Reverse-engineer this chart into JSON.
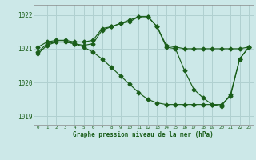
{
  "line1_x": [
    0,
    1,
    2,
    3,
    4,
    5,
    6,
    7,
    8,
    9,
    10,
    11,
    12,
    13,
    14,
    15,
    16,
    17,
    18,
    19,
    20,
    21,
    22,
    23
  ],
  "line1_y": [
    1021.05,
    1021.2,
    1021.25,
    1021.25,
    1021.2,
    1021.2,
    1021.25,
    1021.6,
    1021.65,
    1021.75,
    1021.85,
    1021.95,
    1021.95,
    1021.65,
    1021.1,
    1021.05,
    1021.0,
    1021.0,
    1021.0,
    1021.0,
    1021.0,
    1021.0,
    1021.0,
    1021.05
  ],
  "line2_x": [
    0,
    1,
    2,
    3,
    4,
    5,
    6,
    7,
    8,
    9,
    10,
    11,
    12,
    13,
    14,
    15,
    16,
    17,
    18,
    19,
    20,
    21,
    22,
    23
  ],
  "line2_y": [
    1020.9,
    1021.15,
    1021.2,
    1021.2,
    1021.15,
    1021.1,
    1021.15,
    1021.55,
    1021.65,
    1021.75,
    1021.8,
    1021.95,
    1021.95,
    1021.65,
    1021.05,
    1021.0,
    1020.35,
    1019.8,
    1019.55,
    1019.35,
    1019.3,
    1019.65,
    1020.7,
    1021.05
  ],
  "line3_x": [
    0,
    1,
    2,
    3,
    4,
    5,
    6,
    7,
    8,
    9,
    10,
    11,
    12,
    13,
    14,
    15,
    16,
    17,
    18,
    19,
    20,
    21,
    22,
    23
  ],
  "line3_y": [
    1020.85,
    1021.1,
    1021.2,
    1021.2,
    1021.15,
    1021.05,
    1020.9,
    1020.7,
    1020.45,
    1020.2,
    1019.95,
    1019.7,
    1019.5,
    1019.4,
    1019.35,
    1019.35,
    1019.35,
    1019.35,
    1019.35,
    1019.35,
    1019.35,
    1019.6,
    1020.7,
    1021.05
  ],
  "line_color": "#1a5e1a",
  "bg_color": "#cce8e8",
  "grid_color": "#b0d0d0",
  "text_color": "#1a5e1a",
  "xlabel": "Graphe pression niveau de la mer (hPa)",
  "ylim": [
    1018.75,
    1022.3
  ],
  "yticks": [
    1019,
    1020,
    1021,
    1022
  ],
  "xticks": [
    0,
    1,
    2,
    3,
    4,
    5,
    6,
    7,
    8,
    9,
    10,
    11,
    12,
    13,
    14,
    15,
    16,
    17,
    18,
    19,
    20,
    21,
    22,
    23
  ],
  "marker": "D",
  "markersize": 2.5,
  "linewidth": 0.85
}
